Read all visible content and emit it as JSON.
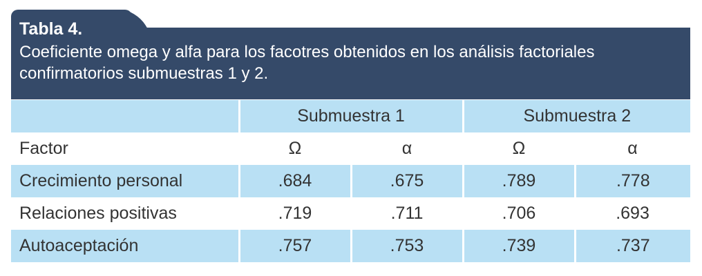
{
  "title": "Tabla 4.",
  "caption": "Coeficiente omega y alfa para los facotres obtenidos en los análisis factoriales confirmatorios submuestras 1 y 2.",
  "group_headers": [
    "Submuestra 1",
    "Submuestra 2"
  ],
  "column_headers": {
    "factor": "Factor",
    "cols": [
      "Ω",
      "α",
      "Ω",
      "α"
    ]
  },
  "rows": [
    {
      "factor": "Crecimiento personal",
      "values": [
        ".684",
        ".675",
        ".789",
        ".778"
      ]
    },
    {
      "factor": "Relaciones positivas",
      "values": [
        ".719",
        ".711",
        ".706",
        ".693"
      ]
    },
    {
      "factor": "Autoaceptación",
      "values": [
        ".757",
        ".753",
        ".739",
        ".737"
      ]
    }
  ],
  "colors": {
    "header_bg": "#354a69",
    "row_bg": "#b9e0f4"
  }
}
